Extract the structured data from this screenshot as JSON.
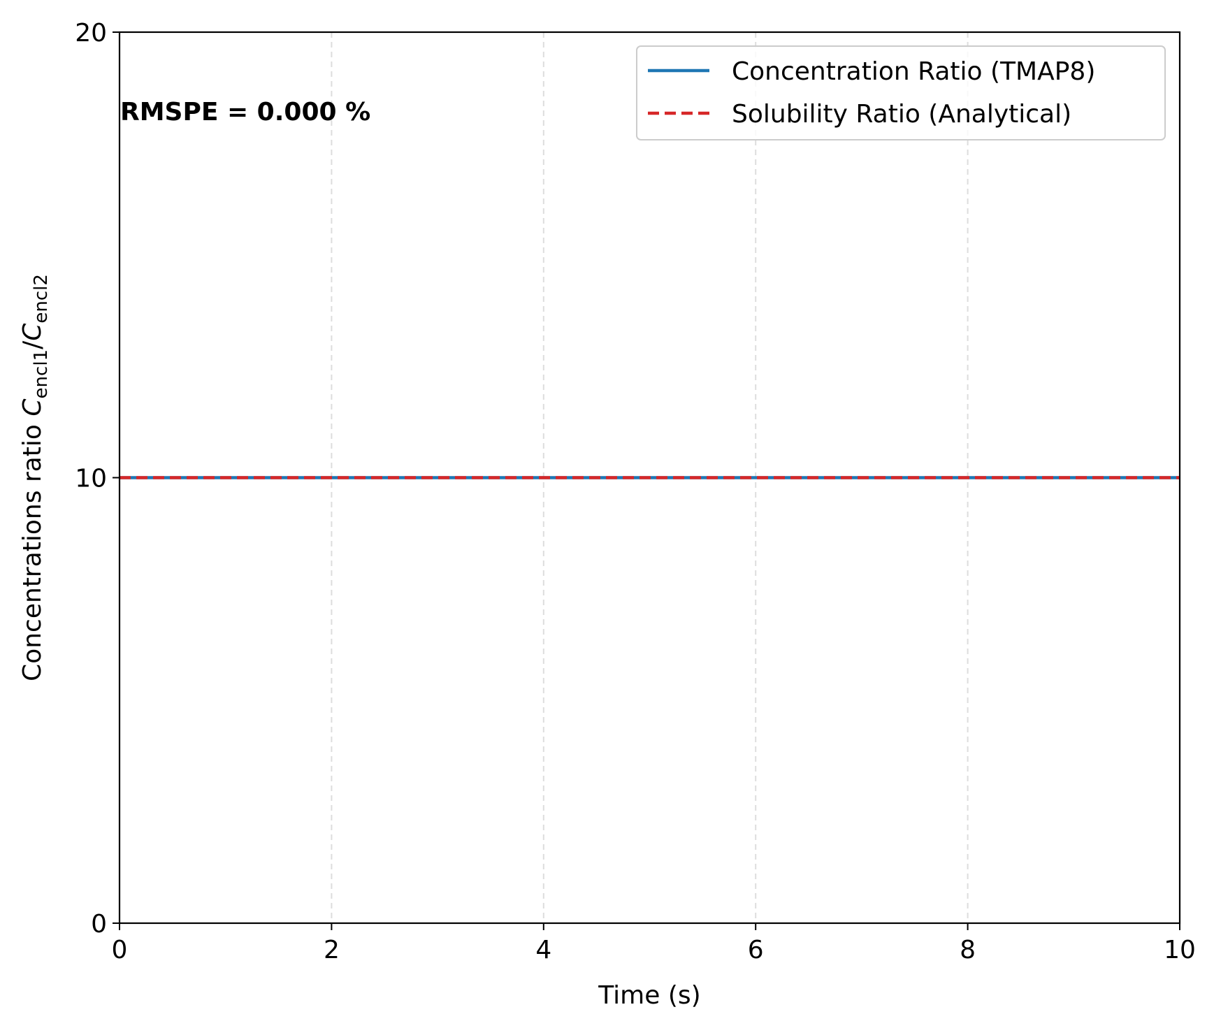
{
  "chart_data": {
    "type": "line",
    "xlabel": "Time (s)",
    "ylabel": {
      "prefix": "Concentrations ratio ",
      "var1": "C",
      "sub1": "encl1",
      "slash": "/",
      "var2": "C",
      "sub2": "encl2"
    },
    "xlim": [
      0,
      10
    ],
    "ylim": [
      0,
      20
    ],
    "xticks": [
      0,
      2,
      4,
      6,
      8,
      10
    ],
    "yticks": [
      0,
      10,
      20
    ],
    "xtick_labels": [
      "0",
      "2",
      "4",
      "6",
      "8",
      "10"
    ],
    "ytick_labels": [
      "0",
      "10",
      "20"
    ],
    "grid": "vertical dashed",
    "legend_position": "upper right",
    "annotation": "RMSPE = 0.000 %",
    "series": [
      {
        "name": "Concentration Ratio (TMAP8)",
        "color": "#1f77b4",
        "style": "solid",
        "x": [
          0,
          10
        ],
        "y": [
          10,
          10
        ]
      },
      {
        "name": "Solubility Ratio (Analytical)",
        "color": "#d62728",
        "style": "dashed",
        "x": [
          0,
          10
        ],
        "y": [
          10,
          10
        ]
      }
    ]
  }
}
